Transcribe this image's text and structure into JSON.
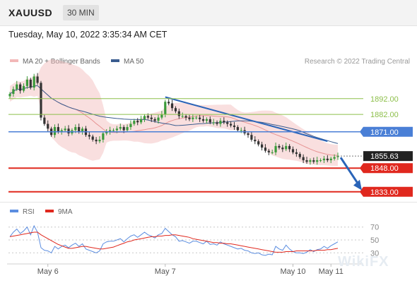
{
  "header": {
    "symbol": "XAUUSD",
    "timeframe": "30 MIN"
  },
  "datetime": "Tuesday, May 10, 2022 3:35:34 AM CET",
  "credit": "Research © 2022 Trading Central",
  "watermark": "WikiFX",
  "colors": {
    "bollinger": "#f2b8b8",
    "ma20": "#e79393",
    "ma50": "#3a5c8f",
    "up": "#3a9a3a",
    "down": "#333333",
    "resistance": "#8dbf4a",
    "pivot": "#4a7fd6",
    "support": "#e0281e",
    "rsi": "#5b8de0",
    "rsi_ma": "#e0281e",
    "current": "#222222",
    "projection": "#2a64b8"
  },
  "chart_data": [
    {
      "type": "candlestick",
      "legend": [
        {
          "name": "MA 20 + Bollinger Bands",
          "color": "#f2b8b8"
        },
        {
          "name": "MA 50",
          "color": "#3a5c8f"
        }
      ],
      "x_ticks": [
        "May 6",
        "May 7",
        "May 10",
        "May 11"
      ],
      "ylim": [
        1828,
        1912
      ],
      "levels": [
        {
          "label": "1892.00",
          "value": 1892.0,
          "role": "resistance"
        },
        {
          "label": "1882.00",
          "value": 1882.0,
          "role": "resistance"
        },
        {
          "label": "1871.00",
          "value": 1871.0,
          "role": "pivot"
        },
        {
          "label": "1855.63",
          "value": 1855.63,
          "role": "current"
        },
        {
          "label": "1848.00",
          "value": 1848.0,
          "role": "support"
        },
        {
          "label": "1833.00",
          "value": 1833.0,
          "role": "support"
        }
      ],
      "closes": [
        1895,
        1898,
        1901,
        1897,
        1900,
        1904,
        1899,
        1906,
        1902,
        1880,
        1876,
        1873,
        1869,
        1874,
        1871,
        1872,
        1873,
        1870,
        1872,
        1874,
        1871,
        1873,
        1869,
        1868,
        1866,
        1865,
        1866,
        1870,
        1871,
        1872,
        1872,
        1873,
        1874,
        1872,
        1874,
        1876,
        1878,
        1877,
        1879,
        1881,
        1880,
        1879,
        1878,
        1880,
        1882,
        1890,
        1889,
        1886,
        1884,
        1881,
        1881,
        1880,
        1879,
        1880,
        1880,
        1879,
        1878,
        1879,
        1877,
        1877,
        1876,
        1878,
        1877,
        1876,
        1875,
        1874,
        1872,
        1872,
        1870,
        1869,
        1866,
        1865,
        1863,
        1861,
        1859,
        1858,
        1858,
        1862,
        1861,
        1860,
        1862,
        1860,
        1858,
        1857,
        1855,
        1853,
        1852,
        1853,
        1852,
        1853,
        1853,
        1854,
        1853,
        1854,
        1855,
        1855.63
      ]
    },
    {
      "type": "line",
      "legend": [
        {
          "name": "RSI",
          "color": "#5b8de0"
        },
        {
          "name": "9MA",
          "color": "#e0281e"
        }
      ],
      "y_ticks": [
        "70",
        "50",
        "30"
      ],
      "ylim": [
        15,
        85
      ],
      "rsi": [
        55,
        62,
        67,
        60,
        64,
        70,
        58,
        72,
        62,
        38,
        34,
        33,
        30,
        40,
        36,
        40,
        42,
        38,
        42,
        45,
        40,
        44,
        36,
        34,
        32,
        30,
        33,
        44,
        47,
        48,
        48,
        50,
        52,
        47,
        52,
        56,
        58,
        54,
        58,
        62,
        58,
        56,
        53,
        58,
        60,
        68,
        63,
        58,
        55,
        48,
        49,
        47,
        45,
        48,
        48,
        46,
        44,
        48,
        43,
        44,
        42,
        47,
        44,
        42,
        40,
        38,
        36,
        37,
        34,
        33,
        30,
        29,
        30,
        27,
        26,
        28,
        27,
        40,
        36,
        34,
        42,
        36,
        32,
        30,
        30,
        29,
        31,
        35,
        32,
        35,
        36,
        40,
        37,
        41,
        44,
        47
      ],
      "ma9": [
        55,
        56,
        57,
        58,
        59,
        60,
        61,
        62,
        62,
        58,
        55,
        52,
        49,
        46,
        43,
        41,
        39,
        37,
        37,
        38,
        39,
        40,
        40,
        39,
        38,
        37,
        36,
        36,
        37,
        38,
        39,
        41,
        43,
        45,
        47,
        48,
        50,
        51,
        52,
        53,
        54,
        55,
        55,
        56,
        56,
        57,
        57,
        58,
        58,
        57,
        56,
        55,
        54,
        52,
        51,
        50,
        49,
        48,
        47,
        46,
        46,
        45,
        45,
        44,
        44,
        43,
        42,
        41,
        40,
        39,
        38,
        37,
        36,
        35,
        34,
        33,
        32,
        31,
        31,
        31,
        32,
        32,
        32,
        33,
        33,
        33,
        33,
        33,
        33,
        34,
        34,
        34,
        35,
        35,
        36,
        37
      ]
    }
  ]
}
